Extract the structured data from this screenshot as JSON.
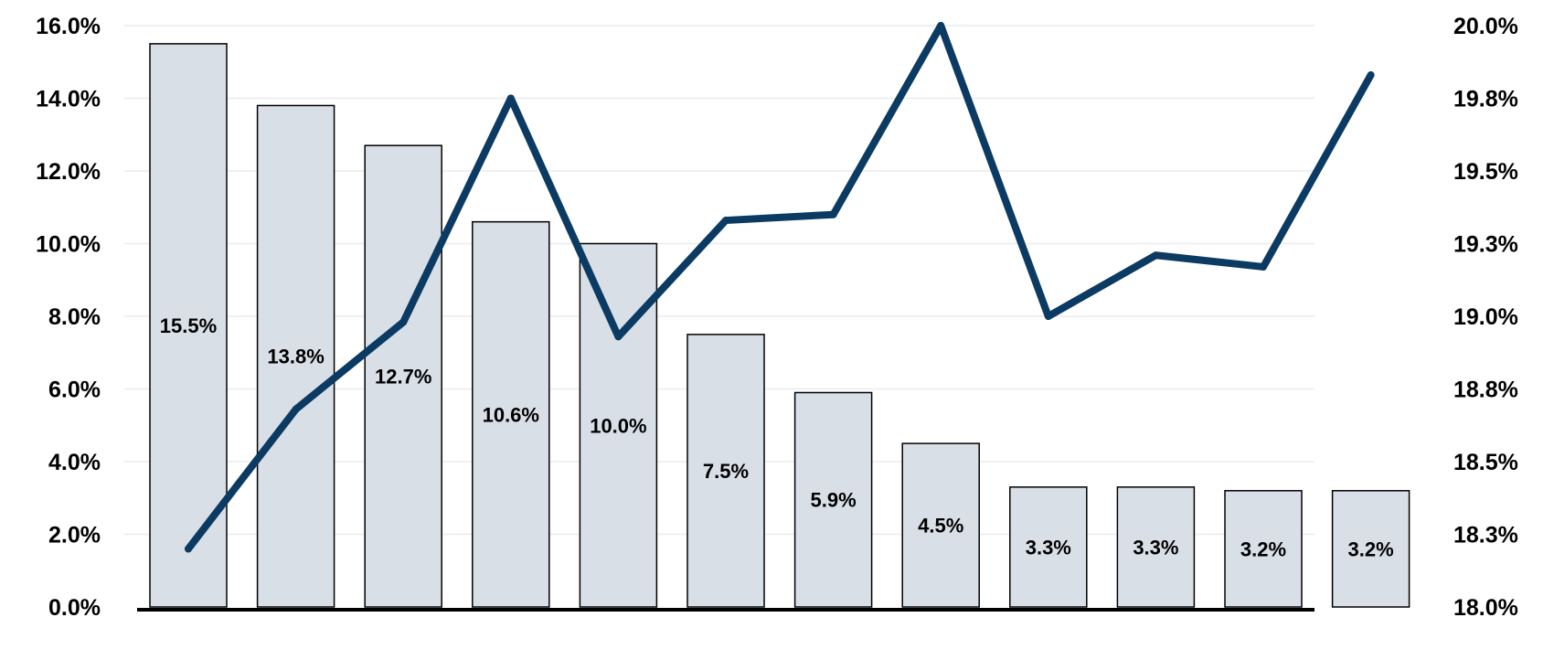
{
  "chart_data": {
    "type": "bar",
    "categories": [
      "",
      "",
      "",
      "",
      "",
      "",
      "",
      "",
      "",
      "",
      "",
      ""
    ],
    "series": [
      {
        "type": "bar",
        "axis": "left",
        "values": [
          15.5,
          13.8,
          12.7,
          10.6,
          10.0,
          7.5,
          5.9,
          4.5,
          3.3,
          3.3,
          3.2,
          3.2
        ],
        "labels": [
          "15.5%",
          "13.8%",
          "12.7%",
          "10.6%",
          "10.0%",
          "7.5%",
          "5.9%",
          "4.5%",
          "3.3%",
          "3.3%",
          "3.2%",
          "3.2%"
        ],
        "color": "#d9dfe7"
      },
      {
        "type": "line",
        "axis": "right",
        "values": [
          18.2,
          18.68,
          18.98,
          19.75,
          18.93,
          19.33,
          19.35,
          20.0,
          19.0,
          19.21,
          19.17,
          19.83
        ],
        "color": "#0b3a62"
      }
    ],
    "y_left": {
      "ylim": [
        0,
        16
      ],
      "ticks": [
        "0.0%",
        "2.0%",
        "4.0%",
        "6.0%",
        "8.0%",
        "10.0%",
        "12.0%",
        "14.0%",
        "16.0%"
      ]
    },
    "y_right": {
      "ylim": [
        18,
        20
      ],
      "ticks": [
        "18.0%",
        "18.3%",
        "18.5%",
        "18.8%",
        "19.0%",
        "19.3%",
        "19.5%",
        "19.8%",
        "20.0%"
      ]
    },
    "grid": true,
    "legend": "none"
  }
}
